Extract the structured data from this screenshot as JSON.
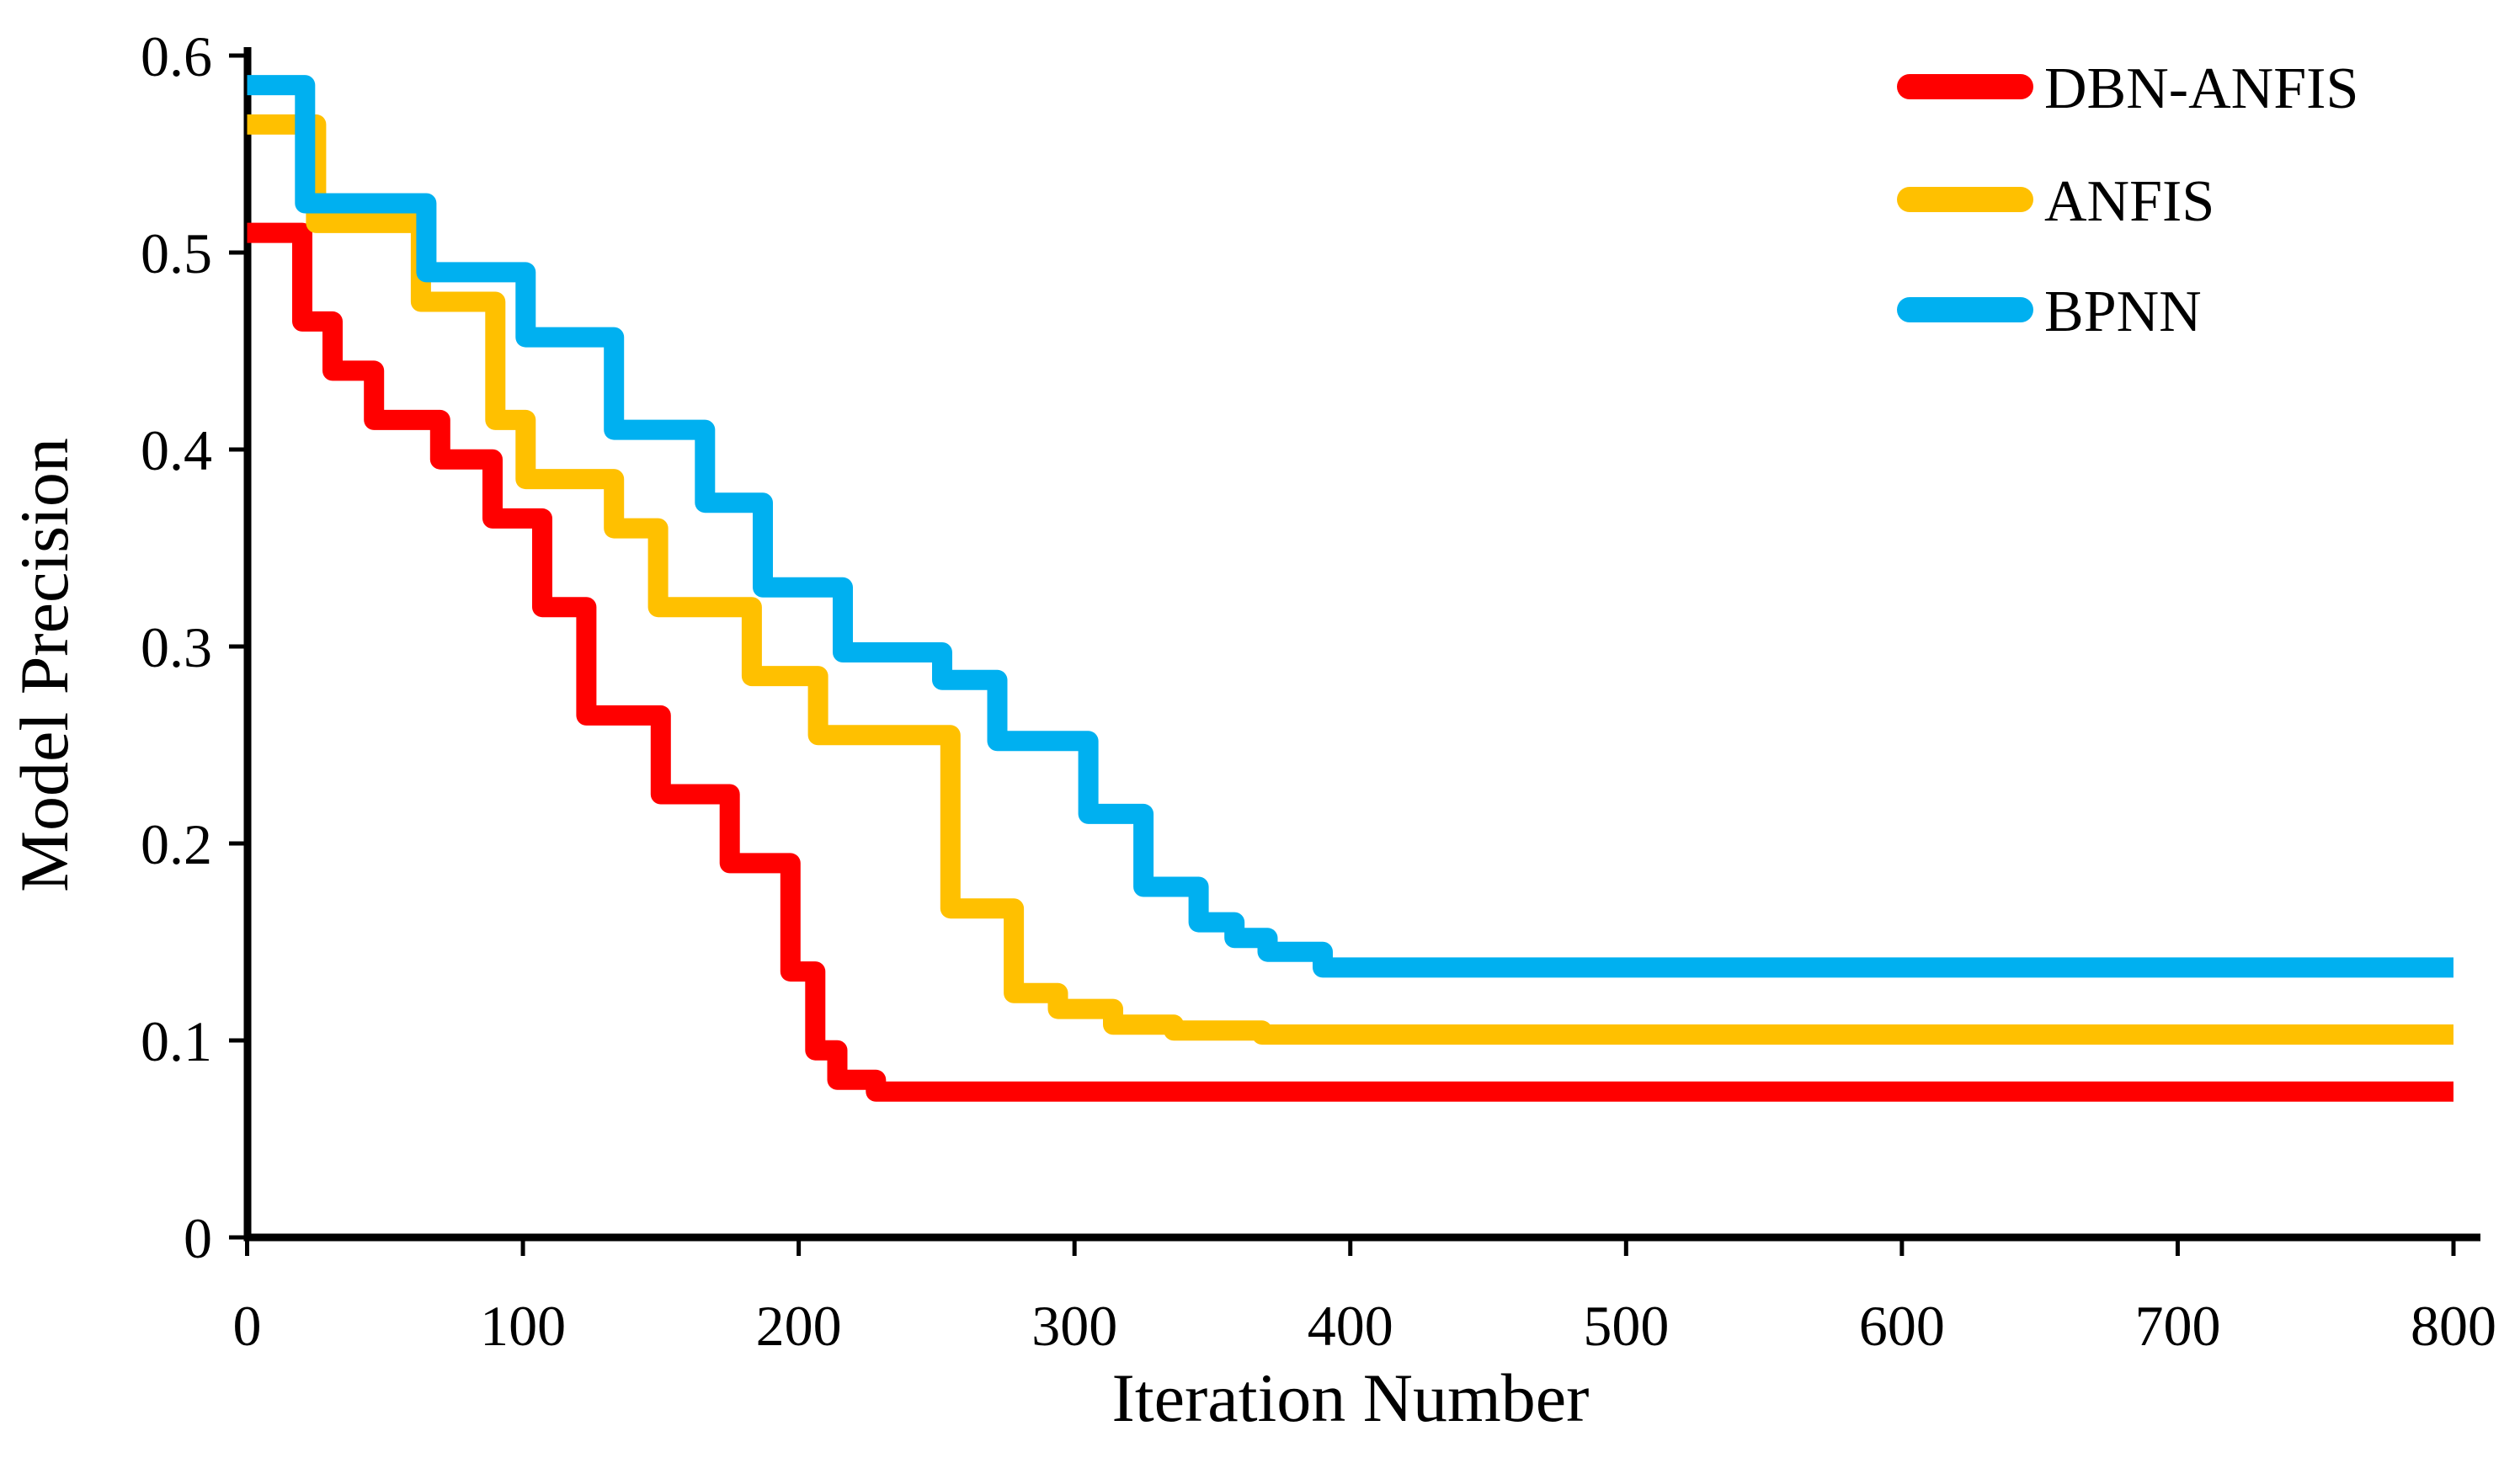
{
  "figure": {
    "background_color": "#ffffff",
    "axis_color": "#000000",
    "text_color": "#000000"
  },
  "chart_data": {
    "type": "line",
    "subtype": "step",
    "title": "",
    "xlabel": "Iteration Number",
    "ylabel": "Model Precision",
    "xlim": [
      0,
      800
    ],
    "ylim": [
      0,
      0.6
    ],
    "xticks": [
      {
        "value": 0,
        "label": "0"
      },
      {
        "value": 100,
        "label": "100"
      },
      {
        "value": 200,
        "label": "200"
      },
      {
        "value": 300,
        "label": "300"
      },
      {
        "value": 400,
        "label": "400"
      },
      {
        "value": 500,
        "label": "500"
      },
      {
        "value": 600,
        "label": "600"
      },
      {
        "value": 700,
        "label": "700"
      },
      {
        "value": 800,
        "label": "800"
      }
    ],
    "yticks": [
      {
        "value": 0,
        "label": "0"
      },
      {
        "value": 0.1,
        "label": "0.1"
      },
      {
        "value": 0.2,
        "label": "0.2"
      },
      {
        "value": 0.3,
        "label": "0.3"
      },
      {
        "value": 0.4,
        "label": "0.4"
      },
      {
        "value": 0.5,
        "label": "0.5"
      },
      {
        "value": 0.6,
        "label": "0.6"
      }
    ],
    "grid": false,
    "legend_position": "top-right",
    "series": [
      {
        "name": "DBN-ANFIS",
        "color": "#ff0000",
        "final_value": 0.074,
        "points": [
          [
            0,
            0.51
          ],
          [
            20,
            0.465
          ],
          [
            31,
            0.44
          ],
          [
            46,
            0.415
          ],
          [
            70,
            0.395
          ],
          [
            89,
            0.365
          ],
          [
            107,
            0.32
          ],
          [
            123,
            0.265
          ],
          [
            150,
            0.225
          ],
          [
            175,
            0.19
          ],
          [
            197,
            0.135
          ],
          [
            206,
            0.095
          ],
          [
            214,
            0.08
          ],
          [
            228,
            0.074
          ],
          [
            800,
            0.074
          ]
        ]
      },
      {
        "name": "ANFIS",
        "color": "#ffc000",
        "final_value": 0.103,
        "points": [
          [
            0,
            0.565
          ],
          [
            25,
            0.515
          ],
          [
            63,
            0.475
          ],
          [
            90,
            0.415
          ],
          [
            101,
            0.385
          ],
          [
            133,
            0.36
          ],
          [
            149,
            0.32
          ],
          [
            183,
            0.285
          ],
          [
            207,
            0.255
          ],
          [
            255,
            0.167
          ],
          [
            278,
            0.124
          ],
          [
            294,
            0.116
          ],
          [
            314,
            0.108
          ],
          [
            336,
            0.105
          ],
          [
            368,
            0.103
          ],
          [
            800,
            0.103
          ]
        ]
      },
      {
        "name": "BPNN",
        "color": "#00b0f0",
        "final_value": 0.137,
        "points": [
          [
            0,
            0.585
          ],
          [
            21,
            0.525
          ],
          [
            65,
            0.49
          ],
          [
            101,
            0.457
          ],
          [
            133,
            0.41
          ],
          [
            166,
            0.373
          ],
          [
            187,
            0.33
          ],
          [
            216,
            0.297
          ],
          [
            252,
            0.283
          ],
          [
            272,
            0.252
          ],
          [
            305,
            0.215
          ],
          [
            325,
            0.178
          ],
          [
            345,
            0.16
          ],
          [
            358,
            0.152
          ],
          [
            370,
            0.145
          ],
          [
            390,
            0.137
          ],
          [
            800,
            0.137
          ]
        ]
      }
    ]
  },
  "legend": {
    "entries": [
      {
        "label": "DBN-ANFIS",
        "color": "#ff0000"
      },
      {
        "label": "ANFIS",
        "color": "#ffc000"
      },
      {
        "label": "BPNN",
        "color": "#00b0f0"
      }
    ]
  }
}
